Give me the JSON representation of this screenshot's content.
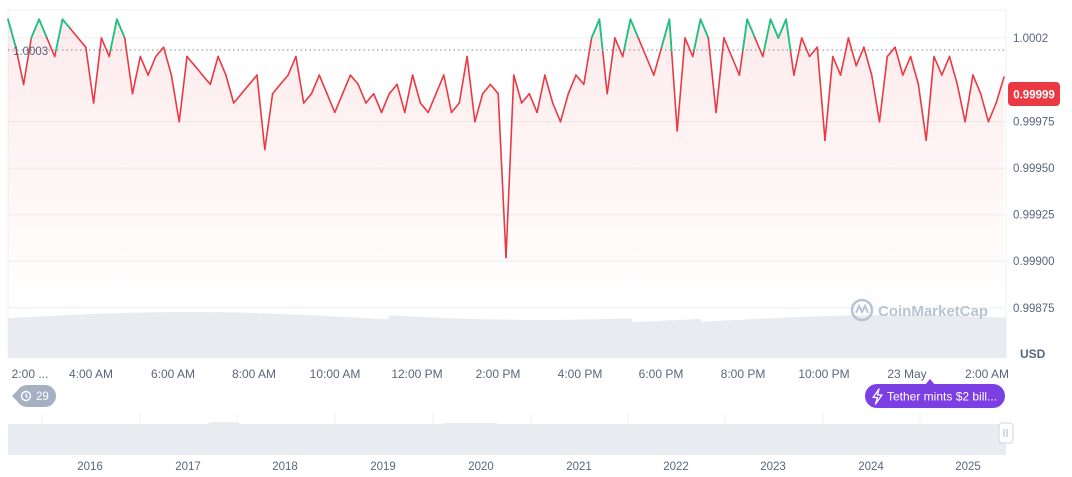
{
  "chart_data": {
    "type": "line",
    "currency_label": "USD",
    "reference_value": "1.0003",
    "current_price_label": "0.99999",
    "y_ticks": [
      "1.0002",
      "0.99975",
      "0.99950",
      "0.99925",
      "0.99900",
      "0.99875"
    ],
    "ylim": [
      0.99848,
      1.00035
    ],
    "x_ticks": [
      "2:00 ...",
      "4:00 AM",
      "6:00 AM",
      "8:00 AM",
      "10:00 AM",
      "12:00 PM",
      "2:00 PM",
      "4:00 PM",
      "6:00 PM",
      "8:00 PM",
      "10:00 PM",
      "23 May",
      "2:00 AM"
    ],
    "series": [
      {
        "values": [
          1.0003,
          1.00015,
          0.99995,
          1.0002,
          1.0003,
          1.0002,
          1.0001,
          1.0003,
          1.00025,
          1.0002,
          1.00015,
          0.99985,
          1.0002,
          1.0001,
          1.0003,
          1.0002,
          0.9999,
          1.0001,
          1.0,
          1.0001,
          1.00015,
          1.0,
          0.99975,
          1.0001,
          1.00005,
          1.0,
          0.99995,
          1.0001,
          1.0,
          0.99985,
          0.9999,
          0.99995,
          1.0,
          0.9996,
          0.9999,
          0.99995,
          1.0,
          1.0001,
          0.99985,
          0.9999,
          1.0,
          0.9999,
          0.9998,
          0.9999,
          1.0,
          0.99995,
          0.99985,
          0.9999,
          0.9998,
          0.9999,
          0.99995,
          0.9998,
          1.0,
          0.99985,
          0.9998,
          0.9999,
          1.0,
          0.9998,
          0.99985,
          1.0001,
          0.99975,
          0.9999,
          0.99995,
          0.9999,
          0.99902,
          1.0,
          0.99985,
          0.9999,
          0.9998,
          1.0,
          0.99985,
          0.99975,
          0.9999,
          1.0,
          0.99995,
          1.0002,
          1.0003,
          0.9999,
          1.0002,
          1.0001,
          1.0003,
          1.0002,
          1.0001,
          1.0,
          1.00015,
          1.0003,
          0.9997,
          1.0002,
          1.0001,
          1.0003,
          1.0002,
          0.9998,
          1.0002,
          1.0001,
          1.0,
          1.0003,
          1.0002,
          1.0001,
          1.0003,
          1.0002,
          1.0003,
          1.0,
          1.0002,
          1.0001,
          1.00015,
          0.99965,
          1.0001,
          1.0,
          1.0002,
          1.00005,
          1.00015,
          1.0,
          0.99975,
          1.0001,
          1.00015,
          1.0,
          1.0001,
          0.99995,
          0.99965,
          1.0001,
          1.0,
          1.0001,
          0.99995,
          0.99975,
          1.0,
          0.9999,
          0.99975,
          0.99985,
          0.99999
        ]
      }
    ],
    "volume_label": "",
    "grid": true,
    "watermark": "CoinMarketCap",
    "event_count": "29",
    "event_note": "Tether mints $2 bill...",
    "navigator_years": [
      "2016",
      "2017",
      "2018",
      "2019",
      "2020",
      "2021",
      "2022",
      "2023",
      "2024",
      "2025"
    ],
    "colors": {
      "down": "#ea3943",
      "up": "#16c784",
      "event": "#7b3fe4",
      "badge": "#a6b0c3",
      "grid": "#eef0f3",
      "volume": "#e8ebf0"
    }
  }
}
